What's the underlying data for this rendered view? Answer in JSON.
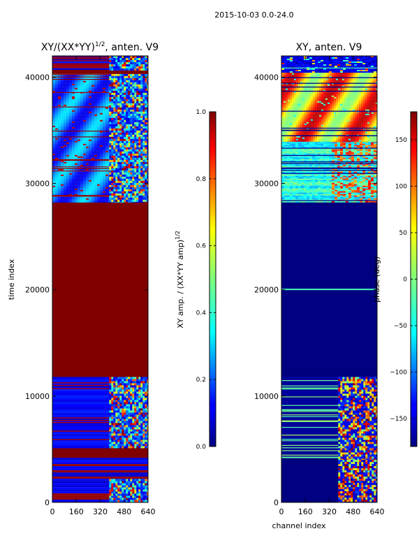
{
  "figure_title": "2015-10-03 0.0-24.0",
  "chart_data": [
    {
      "type": "heatmap",
      "title_main": "XY/(XX*YY)",
      "title_sup": "1/2",
      "title_tail": ", anten. V9",
      "xlabel": "",
      "ylabel": "time index",
      "xlim": [
        0,
        640
      ],
      "ylim": [
        0,
        42000
      ],
      "xticks": [
        0,
        160,
        320,
        480,
        640
      ],
      "yticks": [
        0,
        10000,
        20000,
        30000,
        40000
      ],
      "colormap": "jet",
      "colorbar": {
        "label_main": "XY amp. / (XX*YY amp)",
        "label_sup": "1/2",
        "min": 0.0,
        "max": 1.0,
        "ticks": [
          "0.0",
          "0.2",
          "0.4",
          "0.6",
          "0.8",
          "1.0"
        ],
        "tick_values": [
          0.0,
          0.2,
          0.4,
          0.6,
          0.8,
          1.0
        ]
      },
      "regions": [
        {
          "t0": 0,
          "t1": 4200,
          "value": 1.0,
          "pattern": "mixed-low-with-saturated-rows"
        },
        {
          "t0": 4200,
          "t1": 5200,
          "value": 1.0,
          "pattern": "saturated"
        },
        {
          "t0": 5200,
          "t1": 11800,
          "value": 0.15,
          "pattern": "low-noise-with-active-channels"
        },
        {
          "t0": 11800,
          "t1": 28300,
          "value": 1.0,
          "pattern": "saturated"
        },
        {
          "t0": 28300,
          "t1": 40300,
          "value": 0.25,
          "pattern": "low-wavy"
        },
        {
          "t0": 40300,
          "t1": 40700,
          "value": 1.0,
          "pattern": "saturated"
        },
        {
          "t0": 40700,
          "t1": 42000,
          "value": 0.05,
          "pattern": "low-with-active-channels"
        }
      ],
      "active_channels": [
        380,
        640
      ]
    },
    {
      "type": "heatmap",
      "title_main": "XY, anten. V9",
      "xlabel": "channel index",
      "ylabel": "",
      "xlim": [
        0,
        640
      ],
      "ylim": [
        0,
        42000
      ],
      "xticks": [
        0,
        160,
        320,
        480,
        640
      ],
      "yticks": [
        0,
        10000,
        20000,
        30000,
        40000
      ],
      "colormap": "jet",
      "colorbar": {
        "label_main": "phase (deg)",
        "min": -180,
        "max": 180,
        "ticks": [
          "−150",
          "−100",
          "−50",
          "0",
          "50",
          "100",
          "150"
        ],
        "tick_values": [
          -150,
          -100,
          -50,
          0,
          50,
          100,
          150
        ]
      },
      "regions": [
        {
          "t0": 0,
          "t1": 4200,
          "value": -180,
          "pattern": "low-with-active-channels"
        },
        {
          "t0": 4200,
          "t1": 4300,
          "value": -10,
          "pattern": "line"
        },
        {
          "t0": 4300,
          "t1": 11800,
          "value": -170,
          "pattern": "low-with-lines-and-active-channels"
        },
        {
          "t0": 11800,
          "t1": 28300,
          "value": -180,
          "pattern": "uniform"
        },
        {
          "t0": 28300,
          "t1": 34000,
          "value": -20,
          "pattern": "mixed-green-cyan"
        },
        {
          "t0": 34000,
          "t1": 40500,
          "value": 120,
          "pattern": "wavy-red-yellow"
        },
        {
          "t0": 40500,
          "t1": 42000,
          "value": -170,
          "pattern": "low-noise"
        }
      ],
      "active_channels": [
        380,
        640
      ]
    }
  ]
}
